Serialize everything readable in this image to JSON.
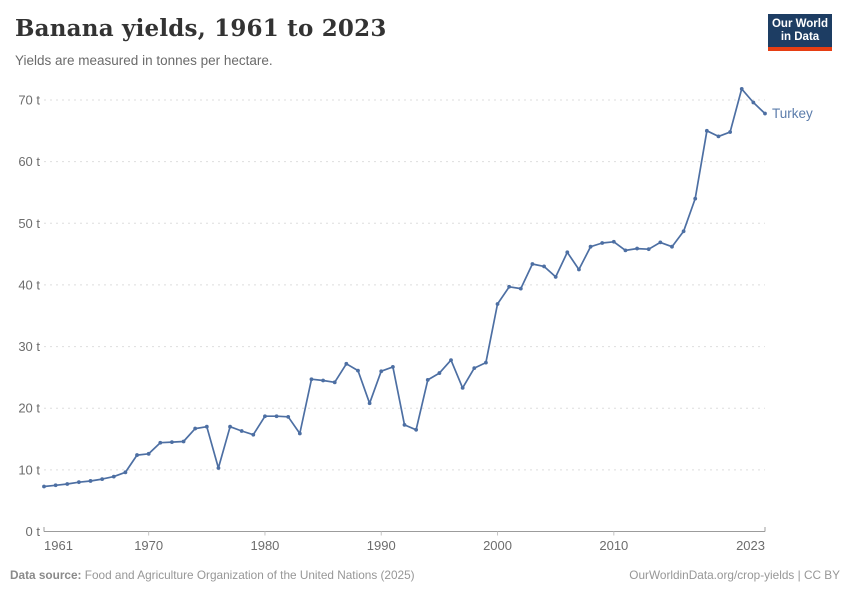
{
  "header": {
    "title": "Banana yields, 1961 to 2023",
    "subtitle": "Yields are measured in tonnes per hectare.",
    "logo": {
      "line1": "Our World",
      "line2": "in Data"
    }
  },
  "footer": {
    "datasource_label": "Data source:",
    "datasource_text": " Food and Agriculture Organization of the United Nations (2025)",
    "link_text": "OurWorldinData.org/crop-yields",
    "separator": " | ",
    "license": "CC BY"
  },
  "colors": {
    "line": "#4d6fa3",
    "series_label": "#5b7cab",
    "gridline": "#dedede",
    "axis": "#9c9c9c",
    "tick": "#c4c4c4",
    "tick_label": "#6d6d6d",
    "logo_bg": "#1d3d63",
    "logo_accent": "#e63e13"
  },
  "chart_data": {
    "type": "line",
    "title": "Banana yields, 1961 to 2023",
    "subtitle": "Yields are measured in tonnes per hectare.",
    "unit_short": "t",
    "xlabel": "",
    "ylabel": "tonnes per hectare",
    "xlim": [
      1961,
      2023
    ],
    "ylim": [
      0,
      70
    ],
    "xticks": [
      1961,
      1970,
      1980,
      1990,
      2000,
      2010,
      2023
    ],
    "yticks": [
      0,
      10,
      20,
      30,
      40,
      50,
      60,
      70
    ],
    "grid": "horizontal-dashed",
    "legend_position": "end-of-line",
    "x": [
      1961,
      1962,
      1963,
      1964,
      1965,
      1966,
      1967,
      1968,
      1969,
      1970,
      1971,
      1972,
      1973,
      1974,
      1975,
      1976,
      1977,
      1978,
      1979,
      1980,
      1981,
      1982,
      1983,
      1984,
      1985,
      1986,
      1987,
      1988,
      1989,
      1990,
      1991,
      1992,
      1993,
      1994,
      1995,
      1996,
      1997,
      1998,
      1999,
      2000,
      2001,
      2002,
      2003,
      2004,
      2005,
      2006,
      2007,
      2008,
      2009,
      2010,
      2011,
      2012,
      2013,
      2014,
      2015,
      2016,
      2017,
      2018,
      2019,
      2020,
      2021,
      2022,
      2023
    ],
    "series": [
      {
        "name": "Turkey",
        "values": [
          7.3,
          7.5,
          7.7,
          8.0,
          8.2,
          8.5,
          8.9,
          9.6,
          12.4,
          12.6,
          14.4,
          14.5,
          14.6,
          16.7,
          17.0,
          10.3,
          17.0,
          16.3,
          15.7,
          18.7,
          18.7,
          18.6,
          15.9,
          24.7,
          24.5,
          24.2,
          27.2,
          26.1,
          20.8,
          26.0,
          26.7,
          17.3,
          16.5,
          24.6,
          25.7,
          27.8,
          23.3,
          26.5,
          27.4,
          36.9,
          39.7,
          39.4,
          43.4,
          43.0,
          41.3,
          45.3,
          42.5,
          46.2,
          46.8,
          47.0,
          45.6,
          45.9,
          45.8,
          46.9,
          46.2,
          48.7,
          54.0,
          65.0,
          64.1,
          64.8,
          71.8,
          69.6,
          67.8
        ]
      }
    ]
  }
}
